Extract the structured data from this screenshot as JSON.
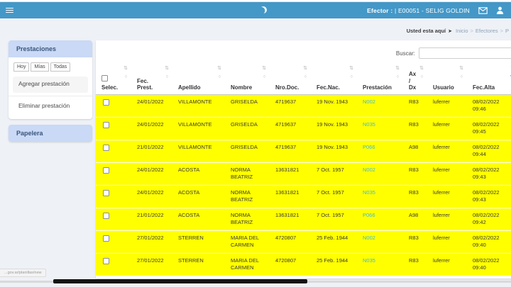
{
  "topbar": {
    "efector_label": "Efector :",
    "efector_value": "| E00051 - SELIG GOLDIN"
  },
  "breadcrumb": {
    "you_are_here": "Usted esta aquí",
    "separator": ">",
    "items": [
      "Inicio",
      "Efectores",
      "P"
    ]
  },
  "sidebar": {
    "sections": [
      {
        "title": "Prestaciones"
      },
      {
        "title": "Papelera"
      }
    ],
    "tabs": [
      "Hoy",
      "Mías",
      "Todas"
    ],
    "items": [
      {
        "label": "Agregar prestación"
      },
      {
        "label": "Eliminar prestación"
      }
    ]
  },
  "search": {
    "label": "Buscar:",
    "value": ""
  },
  "table": {
    "columns": [
      {
        "key": "selec",
        "label": [
          "Selec."
        ],
        "has_checkbox": true
      },
      {
        "key": "fec-prest",
        "label": [
          "Fec.",
          "Prest."
        ]
      },
      {
        "key": "apellido",
        "label": [
          "Apellido"
        ]
      },
      {
        "key": "nombre",
        "label": [
          "Nombre"
        ]
      },
      {
        "key": "nro-doc",
        "label": [
          "Nro.Doc."
        ]
      },
      {
        "key": "fec-nac",
        "label": [
          "Fec.Nac."
        ]
      },
      {
        "key": "prestacion",
        "label": [
          "Prestación"
        ]
      },
      {
        "key": "ax-dx",
        "label": [
          "Ax",
          "/",
          "Dx"
        ]
      },
      {
        "key": "usuario",
        "label": [
          "Usuario"
        ]
      },
      {
        "key": "fec-alta",
        "label": [
          "Fec.Alta"
        ],
        "sorted_desc": true
      }
    ],
    "rows": [
      {
        "fec_prest": "24/01/2022",
        "apellido": "VILLAMONTE",
        "nombre": "GRISELDA",
        "nro_doc": "4719637",
        "fec_nac": "19 Nov. 1943",
        "prestacion": "N002",
        "ax_dx": "R83",
        "usuario": "luferrer",
        "fec_alta": [
          "08/02/2022",
          "09:46"
        ]
      },
      {
        "fec_prest": "24/01/2022",
        "apellido": "VILLAMONTE",
        "nombre": "GRISELDA",
        "nro_doc": "4719637",
        "fec_nac": "19 Nov. 1943",
        "prestacion": "N035",
        "ax_dx": "R83",
        "usuario": "luferrer",
        "fec_alta": [
          "08/02/2022",
          "09:45"
        ]
      },
      {
        "fec_prest": "21/01/2022",
        "apellido": "VILLAMONTE",
        "nombre": "GRISELDA",
        "nro_doc": "4719637",
        "fec_nac": "19 Nov. 1943",
        "prestacion": "P066",
        "ax_dx": "A98",
        "usuario": "luferrer",
        "fec_alta": [
          "08/02/2022",
          "09:44"
        ]
      },
      {
        "fec_prest": "24/01/2022",
        "apellido": "ACOSTA",
        "nombre": "NORMA BEATRIZ",
        "nro_doc": "13631821",
        "fec_nac": "7 Oct. 1957",
        "prestacion": "N002",
        "ax_dx": "R83",
        "usuario": "luferrer",
        "fec_alta": [
          "08/02/2022",
          "09:43"
        ]
      },
      {
        "fec_prest": "24/01/2022",
        "apellido": "ACOSTA",
        "nombre": "NORMA BEATRIZ",
        "nro_doc": "13631821",
        "fec_nac": "7 Oct. 1957",
        "prestacion": "N035",
        "ax_dx": "R83",
        "usuario": "luferrer",
        "fec_alta": [
          "08/02/2022",
          "09:43"
        ]
      },
      {
        "fec_prest": "21/01/2022",
        "apellido": "ACOSTA",
        "nombre": "NORMA BEATRIZ",
        "nro_doc": "13631821",
        "fec_nac": "7 Oct. 1957",
        "prestacion": "P066",
        "ax_dx": "A98",
        "usuario": "luferrer",
        "fec_alta": [
          "08/02/2022",
          "09:42"
        ]
      },
      {
        "fec_prest": "27/01/2022",
        "apellido": "STERREN",
        "nombre": "MARIA DEL CARMEN",
        "nro_doc": "4720807",
        "fec_nac": "25 Feb. 1944",
        "prestacion": "N002",
        "ax_dx": "R83",
        "usuario": "luferrer",
        "fec_alta": [
          "08/02/2022",
          "09:40"
        ]
      },
      {
        "fec_prest": "27/01/2022",
        "apellido": "STERREN",
        "nombre": "MARIA DEL CARMEN",
        "nro_doc": "4720807",
        "fec_nac": "25 Feb. 1944",
        "prestacion": "N035",
        "ax_dx": "R83",
        "usuario": "luferrer",
        "fec_alta": [
          "08/02/2022",
          "09:40"
        ]
      }
    ]
  },
  "statusbar": {
    "url": "...gov.ar/planillas/new"
  },
  "icons": {
    "menu": "hamburger-icon",
    "loading": "crescent-spinner-icon",
    "mail": "envelope-icon",
    "user": "person-icon",
    "breadcrumb_arrow": "➤",
    "sort": "⇅",
    "sort_secondary": "◊",
    "sort_active": "▼"
  },
  "colors": {
    "topbar_blue": "#4398c8",
    "panel_header_blue": "#c9d9f6",
    "row_yellow": "#ffff00",
    "link_blue": "#45b8d8",
    "sort_active": "#8578e6"
  }
}
